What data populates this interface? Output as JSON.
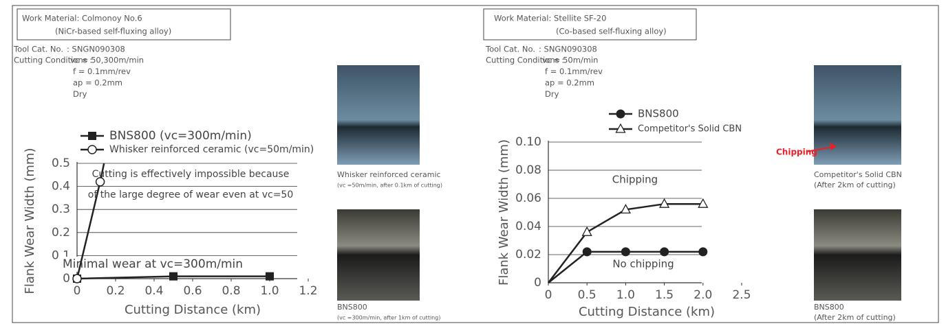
{
  "panels": [
    {
      "work_material": [
        "Work Material: Colmonoy No.6",
        "(NiCr-based self-fluxing alloy)"
      ],
      "tool_cat": [
        "Tool Cat. No.",
        ": SNGN090308"
      ],
      "cutting_conditions": {
        "label": "Cutting Conditions :",
        "lines": [
          "vc = 50,300m/min",
          "f  = 0.1mm/rev",
          "ap = 0.2mm",
          "Dry"
        ]
      },
      "photos": [
        {
          "caption": [
            "Whisker reinforced ceramic",
            "(vc =50m/min, after 0.1km of cutting)"
          ]
        },
        {
          "caption": [
            "BNS800",
            "(vc =300m/min, after 1km of cutting)"
          ]
        }
      ]
    },
    {
      "work_material": [
        "Work Material: Stellite SF-20",
        "(Co-based self-fluxing alloy)"
      ],
      "tool_cat": [
        "Tool Cat. No.",
        ": SNGN090308"
      ],
      "cutting_conditions": {
        "label": "Cutting Conditions :",
        "lines": [
          "vc = 50m/min",
          "f  = 0.1mm/rev",
          "ap = 0.2mm",
          "Dry"
        ]
      },
      "photos": [
        {
          "caption": [
            "Competitor's Solid CBN",
            "(After 2km of cutting)"
          ],
          "callout": "Chipping"
        },
        {
          "caption": [
            "BNS800",
            "(After 2km of cutting)"
          ]
        }
      ]
    }
  ],
  "chart_data": [
    {
      "type": "line",
      "xlabel": "Cutting Distance (km)",
      "ylabel": "Flank Wear Width (mm)",
      "xlim": [
        0,
        1.2
      ],
      "xticks": [
        0,
        0.2,
        0.4,
        0.6,
        0.8,
        {
          "value": 1,
          "label": "1.0"
        },
        1.2
      ],
      "ylim": [
        0,
        0.5
      ],
      "yticks": [
        0,
        0.1,
        0.2,
        0.3,
        0.4,
        0.5
      ],
      "grid": true,
      "series": [
        {
          "name": "BNS800 (vc=300m/min)",
          "color": "#222222",
          "marker": "square",
          "x": [
            0,
            0.5,
            1.0
          ],
          "values": [
            0,
            0.01,
            0.01
          ],
          "marker_indices": [
            0,
            1,
            2
          ]
        },
        {
          "name": "Whisker reinforced ceramic (vc=50m/min)",
          "color": "#222222",
          "marker": "open-circle",
          "x": [
            0,
            0.12,
            0.14
          ],
          "values": [
            0,
            0.42,
            0.5
          ],
          "marker_indices": [
            0,
            1
          ]
        }
      ],
      "annotations": [
        "Cutting is effectively impossible because",
        "of the large degree of wear even at vc=50",
        "Minimal wear at vc=300m/min"
      ]
    },
    {
      "type": "line",
      "xlabel": "Cutting Distance (km)",
      "ylabel": "Flank Wear Width (mm)",
      "xlim": [
        0,
        2.5
      ],
      "xticks": [
        0,
        0.5,
        {
          "value": 1,
          "label": "1.0"
        },
        1.5,
        {
          "value": 2,
          "label": "2.0"
        },
        2.5
      ],
      "ylim": [
        0,
        0.1
      ],
      "yticks": [
        0,
        0.02,
        0.04,
        0.06,
        0.08,
        {
          "value": 0.1,
          "label": "0.10"
        }
      ],
      "grid": true,
      "series": [
        {
          "name": "BNS800",
          "color": "#222222",
          "marker": "circle",
          "x": [
            0,
            0.5,
            1.0,
            1.5,
            2.0
          ],
          "values": [
            0,
            0.022,
            0.022,
            0.022,
            0.022
          ],
          "marker_indices": [
            1,
            2,
            3,
            4
          ]
        },
        {
          "name": "Competitor's Solid CBN",
          "color": "#222222",
          "marker": "open-triangle",
          "x": [
            0,
            0.5,
            1.0,
            1.5,
            2.0
          ],
          "values": [
            0,
            0.036,
            0.052,
            0.056,
            0.056
          ],
          "marker_indices": [
            1,
            2,
            3,
            4
          ]
        }
      ],
      "annotations": [
        "Chipping",
        "No chipping"
      ]
    }
  ]
}
